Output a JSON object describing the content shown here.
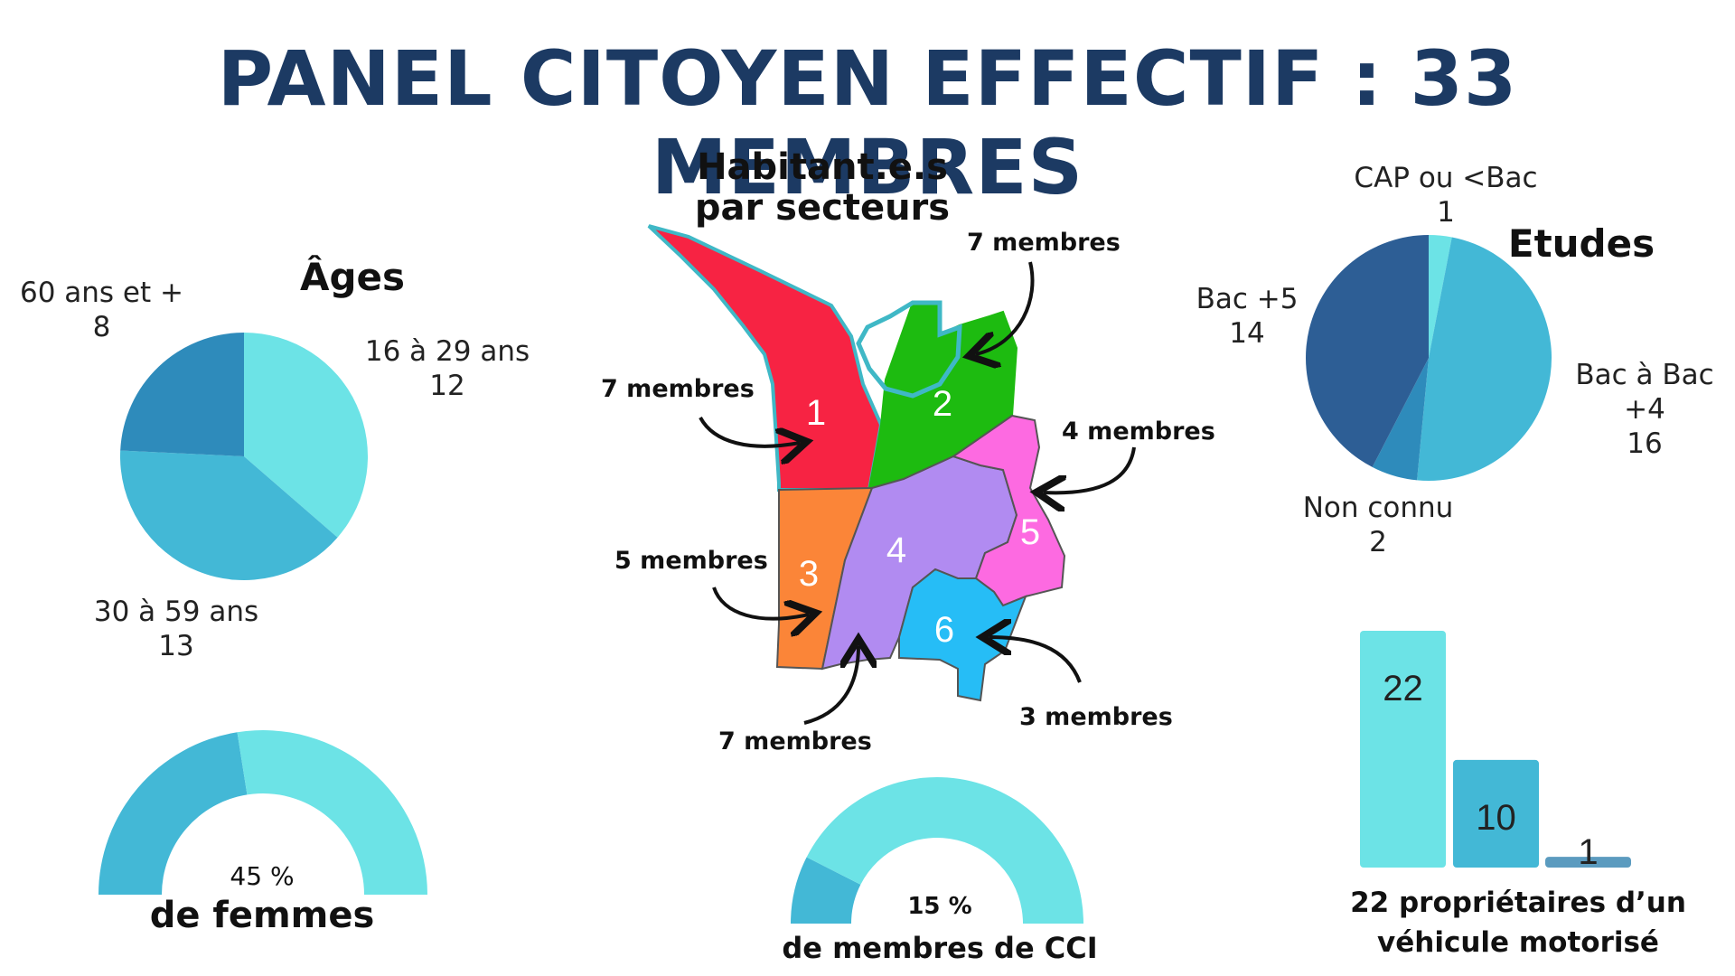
{
  "title": "PANEL CITOYEN EFFECTIF : 33 MEMBRES",
  "chart_data": [
    {
      "type": "pie",
      "title": "Âges",
      "categories": [
        "16 à 29 ans",
        "30 à 59 ans",
        "60 ans et +"
      ],
      "values": [
        12,
        13,
        8
      ],
      "colors": [
        "#6ce3e6",
        "#43b8d6",
        "#2e8bbb"
      ]
    },
    {
      "type": "pie",
      "title": "Etudes",
      "categories": [
        "CAP ou <Bac",
        "Bac à Bac +4",
        "Non connu",
        "Bac +5"
      ],
      "values": [
        1,
        16,
        2,
        14
      ],
      "colors": [
        "#6ce3e6",
        "#43b8d6",
        "#2e8bbb",
        "#2d5e95"
      ]
    },
    {
      "type": "bar",
      "categories": [
        "",
        "",
        ""
      ],
      "values": [
        22,
        10,
        1
      ],
      "colors": [
        "#6ce3e6",
        "#43b8d6",
        "#5b9bbf"
      ],
      "caption": [
        "22 propriétaires d’un",
        "véhicule motorisé"
      ]
    }
  ],
  "gauges": {
    "women": {
      "percent": 45,
      "value_label": "45 %",
      "label": "de femmes",
      "fill": "#43b8d6",
      "rest": "#6ce3e6"
    },
    "cci": {
      "percent": 15,
      "value_label": "15 %",
      "label": "de membres de CCI",
      "fill": "#43b8d6",
      "rest": "#6ce3e6"
    }
  },
  "map": {
    "title_line1": "Habitant.e.s",
    "title_line2": "par secteurs",
    "sectors": [
      {
        "id": "1",
        "members_label": "7 membres",
        "color": "#f72343"
      },
      {
        "id": "2",
        "members_label": "7 membres",
        "color": "#1dbb10"
      },
      {
        "id": "3",
        "members_label": "5 membres",
        "color": "#fb8538"
      },
      {
        "id": "4",
        "members_label": "7 membres",
        "color": "#b18bf1"
      },
      {
        "id": "5",
        "members_label": "4 membres",
        "color": "#fd6ae1"
      },
      {
        "id": "6",
        "members_label": "3 membres",
        "color": "#26bdf6"
      }
    ]
  }
}
